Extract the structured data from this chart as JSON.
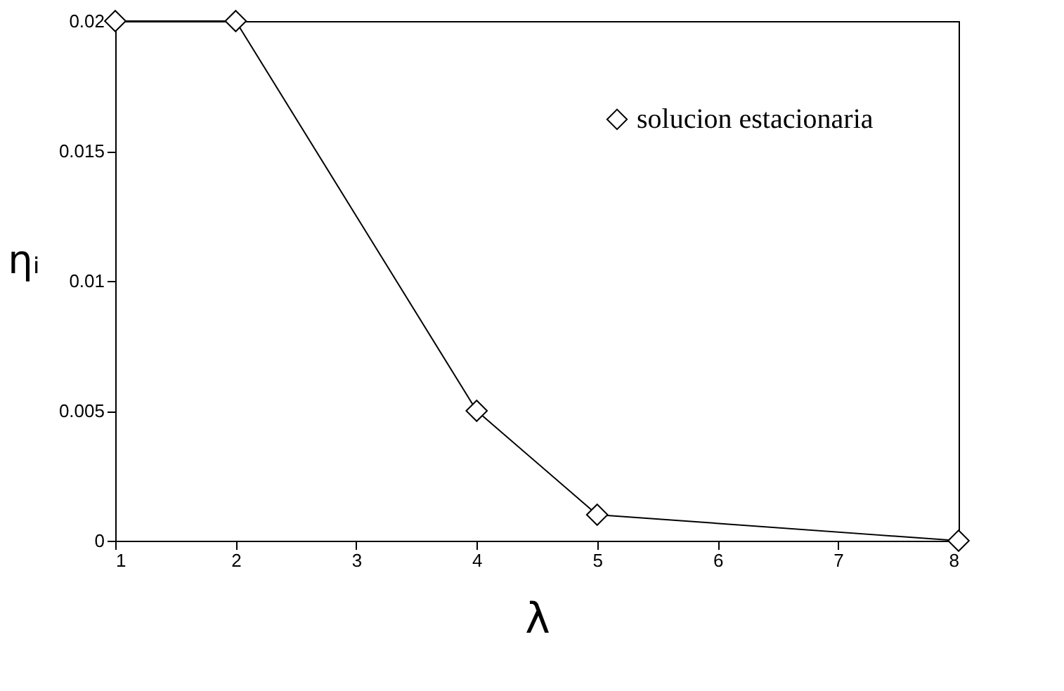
{
  "chart_data": {
    "type": "line",
    "xlabel": "λ",
    "ylabel": "ηᵢ",
    "x": [
      1,
      2,
      4,
      5,
      8
    ],
    "series": [
      {
        "name": "solucion estacionaria",
        "color": "#000000",
        "values": [
          0.02,
          0.02,
          0.005,
          0.001,
          0
        ]
      }
    ],
    "xlim": [
      1,
      8
    ],
    "xticks": [
      1,
      2,
      3,
      4,
      5,
      6,
      7,
      8
    ],
    "ylim": [
      0,
      0.02
    ],
    "yticks": [
      0,
      0.005,
      0.01,
      0.015,
      0.02
    ],
    "grid": false,
    "legend": "top right",
    "marker": "diamond",
    "line_style": "solid"
  }
}
